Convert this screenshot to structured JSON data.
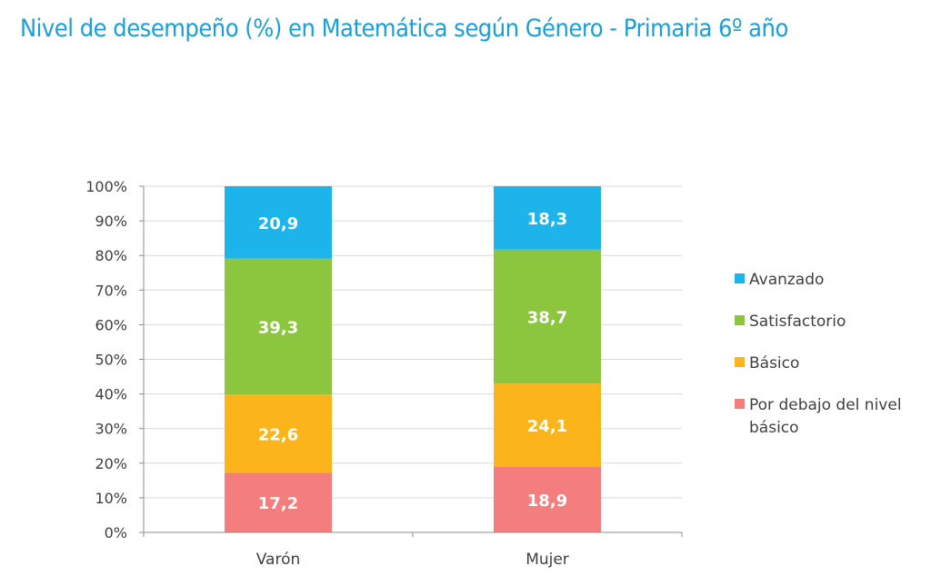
{
  "title": "Nivel de desempeño (%) en Matemática según Género  - Primaria 6º año",
  "chart_data": {
    "type": "bar",
    "stacked": true,
    "title": "Nivel de desempeño (%) en Matemática según Género  - Primaria 6º año",
    "categories": [
      "Varón",
      "Mujer"
    ],
    "ylim": [
      0,
      100
    ],
    "yticks": [
      "0%",
      "10%",
      "20%",
      "30%",
      "40%",
      "50%",
      "60%",
      "70%",
      "80%",
      "90%",
      "100%"
    ],
    "grid": true,
    "legend_position": "right",
    "series": [
      {
        "name": "Por debajo del nivel básico",
        "legend_lines": [
          "Por debajo del nivel",
          "básico"
        ],
        "color": "#f47e7e",
        "values": [
          17.2,
          18.9
        ],
        "labels": [
          "17,2",
          "18,9"
        ]
      },
      {
        "name": "Básico",
        "legend_lines": [
          "Básico"
        ],
        "color": "#fbb51a",
        "values": [
          22.6,
          24.1
        ],
        "labels": [
          "22,6",
          "24,1"
        ]
      },
      {
        "name": "Satisfactorio",
        "legend_lines": [
          "Satisfactorio"
        ],
        "color": "#8cc63f",
        "values": [
          39.3,
          38.7
        ],
        "labels": [
          "39,3",
          "38,7"
        ]
      },
      {
        "name": "Avanzado",
        "legend_lines": [
          "Avanzado"
        ],
        "color": "#1cb4ea",
        "values": [
          20.9,
          18.3
        ],
        "labels": [
          "20,9",
          "18,3"
        ]
      }
    ]
  }
}
